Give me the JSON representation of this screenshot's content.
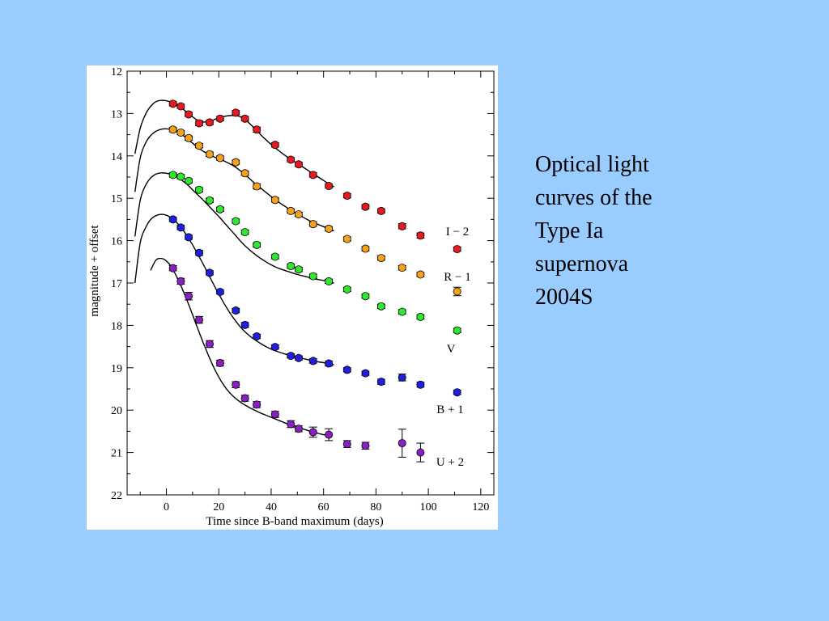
{
  "caption": "Optical light\ncurves of the\nType Ia\nsupernova\n2004S",
  "chart_data": {
    "type": "scatter",
    "title": "",
    "xlabel": "Time since B-band maximum (days)",
    "ylabel": "magnitude + offset",
    "xlim": [
      -15,
      125
    ],
    "ylim": [
      22,
      12
    ],
    "y_inverted": true,
    "x_ticks": [
      0,
      20,
      40,
      60,
      80,
      100,
      120
    ],
    "y_ticks": [
      12,
      13,
      14,
      15,
      16,
      17,
      18,
      19,
      20,
      21,
      22
    ],
    "grid": false,
    "legend_position": "right",
    "error_bars": true,
    "series": [
      {
        "name": "I − 2",
        "color": "#e8191f",
        "x": [
          2.5,
          5.5,
          8.5,
          12.5,
          16.5,
          20.5,
          26.5,
          30,
          34.5,
          41.5,
          47.5,
          50.5,
          56,
          62,
          69,
          76,
          82,
          90,
          97
        ],
        "y": [
          12.77,
          12.83,
          13.02,
          13.23,
          13.21,
          13.12,
          12.98,
          13.12,
          13.38,
          13.74,
          14.09,
          14.2,
          14.45,
          14.71,
          14.94,
          15.2,
          15.3,
          15.66,
          15.88
        ],
        "err": [
          0.05,
          0.05,
          0.05,
          0.06,
          0.05,
          0.05,
          0.05,
          0.05,
          0.06,
          0.05,
          0.05,
          0.05,
          0.05,
          0.05,
          0.05,
          0.05,
          0.05,
          0.06,
          0.06
        ],
        "model": {
          "x": [
            -12,
            -10,
            -8,
            -6,
            -4,
            -2,
            0,
            2,
            4,
            6,
            8,
            10,
            12,
            14,
            16,
            18,
            20,
            22,
            24,
            26,
            28,
            30,
            32,
            34,
            36,
            38,
            40,
            42,
            44,
            46,
            48,
            50,
            52,
            54,
            56,
            58,
            60,
            62,
            64
          ],
          "y": [
            13.95,
            13.35,
            13.02,
            12.83,
            12.72,
            12.69,
            12.7,
            12.74,
            12.8,
            12.88,
            12.98,
            13.08,
            13.16,
            13.2,
            13.19,
            13.15,
            13.1,
            13.07,
            13.05,
            13.05,
            13.07,
            13.14,
            13.25,
            13.37,
            13.5,
            13.62,
            13.73,
            13.83,
            13.93,
            14.02,
            14.1,
            14.18,
            14.26,
            14.34,
            14.42,
            14.5,
            14.58,
            14.66,
            14.73
          ]
        }
      },
      {
        "name": "R − 1",
        "color": "#f5a21a",
        "x": [
          2.5,
          5.5,
          8.5,
          12.5,
          16.5,
          20.5,
          26.5,
          30,
          34.5,
          41.5,
          47.5,
          50.5,
          56,
          62,
          69,
          76,
          82,
          90,
          97
        ],
        "y": [
          13.38,
          13.45,
          13.58,
          13.76,
          13.96,
          14.05,
          14.15,
          14.41,
          14.72,
          15.04,
          15.3,
          15.38,
          15.61,
          15.72,
          15.96,
          16.19,
          16.41,
          16.64,
          16.8
        ],
        "err": [
          0.05,
          0.05,
          0.05,
          0.05,
          0.05,
          0.05,
          0.05,
          0.05,
          0.06,
          0.05,
          0.05,
          0.05,
          0.05,
          0.05,
          0.05,
          0.05,
          0.05,
          0.05,
          0.05
        ],
        "model": {
          "x": [
            -12,
            -10,
            -8,
            -6,
            -4,
            -2,
            0,
            2,
            4,
            6,
            8,
            10,
            12,
            14,
            16,
            18,
            20,
            22,
            24,
            26,
            28,
            30,
            32,
            34,
            36,
            38,
            40,
            42,
            44,
            46,
            48,
            50,
            52,
            54,
            56,
            58,
            60,
            62,
            64
          ],
          "y": [
            14.85,
            14.05,
            13.7,
            13.52,
            13.42,
            13.37,
            13.36,
            13.38,
            13.43,
            13.5,
            13.6,
            13.7,
            13.8,
            13.89,
            13.96,
            14.02,
            14.07,
            14.12,
            14.18,
            14.25,
            14.34,
            14.44,
            14.55,
            14.66,
            14.76,
            14.86,
            14.96,
            15.05,
            15.14,
            15.22,
            15.3,
            15.37,
            15.44,
            15.51,
            15.57,
            15.62,
            15.67,
            15.72,
            15.77
          ]
        }
      },
      {
        "name": "V",
        "color": "#2ee82e",
        "x": [
          2.5,
          5.5,
          8.5,
          12.5,
          16.5,
          20.5,
          26.5,
          30,
          34.5,
          41.5,
          47.5,
          50.5,
          56,
          62,
          69,
          76,
          82,
          90,
          97
        ],
        "y": [
          14.45,
          14.49,
          14.59,
          14.8,
          15.05,
          15.26,
          15.54,
          15.8,
          16.1,
          16.38,
          16.6,
          16.68,
          16.84,
          16.96,
          17.15,
          17.31,
          17.55,
          17.68,
          17.8
        ],
        "err": [
          0.05,
          0.05,
          0.05,
          0.05,
          0.05,
          0.05,
          0.05,
          0.05,
          0.05,
          0.05,
          0.05,
          0.05,
          0.05,
          0.05,
          0.05,
          0.05,
          0.05,
          0.05,
          0.05
        ],
        "model": {
          "x": [
            -12,
            -10,
            -8,
            -6,
            -4,
            -2,
            0,
            2,
            4,
            6,
            8,
            10,
            12,
            14,
            16,
            18,
            20,
            22,
            24,
            26,
            28,
            30,
            32,
            34,
            36,
            38,
            40,
            42,
            44,
            46,
            48,
            50,
            52,
            54,
            56,
            58,
            60,
            62,
            64
          ],
          "y": [
            15.9,
            15.05,
            14.7,
            14.52,
            14.43,
            14.4,
            14.41,
            14.44,
            14.5,
            14.58,
            14.68,
            14.8,
            14.92,
            15.04,
            15.17,
            15.3,
            15.43,
            15.57,
            15.71,
            15.85,
            15.99,
            16.12,
            16.23,
            16.33,
            16.42,
            16.5,
            16.57,
            16.63,
            16.68,
            16.72,
            16.76,
            16.8,
            16.83,
            16.86,
            16.89,
            16.92,
            16.94,
            16.97,
            17.0
          ]
        }
      },
      {
        "name": "B + 1",
        "color": "#1f1fe0",
        "x": [
          2.5,
          5.5,
          8.5,
          12.5,
          16.5,
          20.5,
          26.5,
          30,
          34.5,
          41.5,
          47.5,
          50.5,
          56,
          62,
          69,
          76,
          82,
          90,
          97
        ],
        "y": [
          15.5,
          15.69,
          15.92,
          16.29,
          16.76,
          17.21,
          17.65,
          17.99,
          18.26,
          18.51,
          18.72,
          18.77,
          18.84,
          18.9,
          19.05,
          19.13,
          19.33,
          19.23,
          19.4
        ],
        "err": [
          0.05,
          0.05,
          0.05,
          0.06,
          0.05,
          0.05,
          0.05,
          0.06,
          0.05,
          0.05,
          0.05,
          0.05,
          0.05,
          0.06,
          0.05,
          0.05,
          0.06,
          0.08,
          0.06
        ],
        "model": {
          "x": [
            -12,
            -10,
            -8,
            -6,
            -4,
            -2,
            0,
            2,
            4,
            6,
            8,
            10,
            12,
            14,
            16,
            18,
            20,
            22,
            24,
            26,
            28,
            30,
            32,
            34,
            36,
            38,
            40,
            42,
            44,
            46,
            48,
            50,
            52,
            54,
            56,
            58,
            60,
            62,
            64
          ],
          "y": [
            17.0,
            16.05,
            15.7,
            15.5,
            15.41,
            15.38,
            15.4,
            15.47,
            15.58,
            15.72,
            15.9,
            16.1,
            16.32,
            16.55,
            16.79,
            17.03,
            17.26,
            17.48,
            17.68,
            17.86,
            18.02,
            18.15,
            18.26,
            18.35,
            18.43,
            18.5,
            18.56,
            18.61,
            18.65,
            18.69,
            18.72,
            18.75,
            18.78,
            18.81,
            18.83,
            18.86,
            18.88,
            18.91,
            18.93
          ]
        }
      },
      {
        "name": "U + 2",
        "color": "#8a1fc4",
        "x": [
          2.5,
          5.5,
          8.5,
          12.5,
          16.5,
          20.5,
          26.5,
          30,
          34.5,
          41.5,
          47.5,
          50.5,
          56,
          62,
          69,
          76,
          90,
          97
        ],
        "y": [
          16.65,
          16.96,
          17.31,
          17.87,
          18.44,
          18.89,
          19.4,
          19.72,
          19.87,
          20.1,
          20.33,
          20.44,
          20.52,
          20.58,
          20.8,
          20.84,
          20.78,
          21.0
        ],
        "err": [
          0.06,
          0.07,
          0.09,
          0.08,
          0.08,
          0.07,
          0.07,
          0.07,
          0.07,
          0.07,
          0.08,
          0.07,
          0.12,
          0.14,
          0.08,
          0.08,
          0.33,
          0.22
        ],
        "model": {
          "x": [
            -6,
            -4,
            -2,
            0,
            2,
            4,
            6,
            8,
            10,
            12,
            14,
            16,
            18,
            20,
            22,
            24,
            26,
            28,
            30,
            32,
            34,
            36,
            38,
            40,
            42,
            44,
            46,
            48,
            50,
            52,
            54,
            56,
            58,
            60,
            62
          ],
          "y": [
            16.7,
            16.46,
            16.42,
            16.48,
            16.63,
            16.86,
            17.13,
            17.43,
            17.75,
            18.08,
            18.4,
            18.7,
            18.98,
            19.22,
            19.42,
            19.58,
            19.7,
            19.8,
            19.88,
            19.95,
            20.01,
            20.07,
            20.12,
            20.17,
            20.22,
            20.27,
            20.32,
            20.36,
            20.4,
            20.44,
            20.48,
            20.52,
            20.55,
            20.58,
            20.61
          ]
        }
      }
    ],
    "legend": [
      {
        "label": "I − 2",
        "x": 111,
        "y": 16.2,
        "err": 0.05
      },
      {
        "label": "R − 1",
        "x": 111,
        "y": 17.2,
        "err": 0.1
      },
      {
        "label": "V",
        "x": 111,
        "y": 18.12,
        "err": 0.05
      },
      {
        "label": "B + 1",
        "x": 111,
        "y": 19.58,
        "err": 0.05
      },
      {
        "label": "U + 2",
        "x": null,
        "y": null,
        "err": null
      }
    ]
  }
}
